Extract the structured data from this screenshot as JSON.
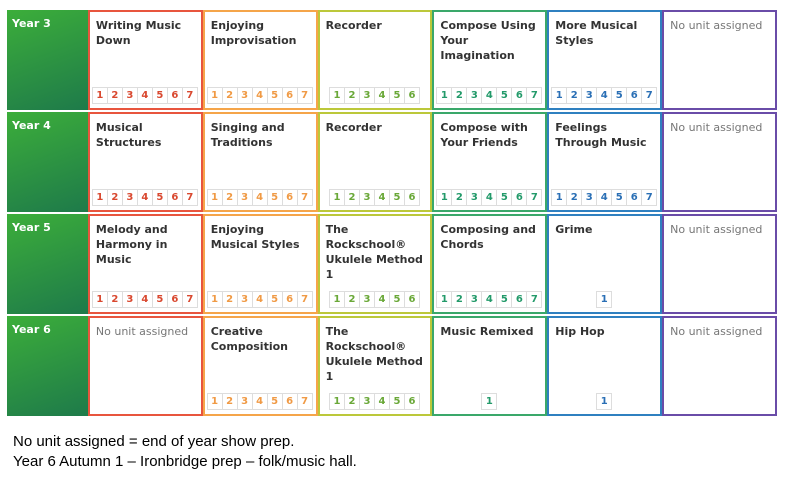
{
  "rows": [
    {
      "year": "Year 3",
      "cells": [
        {
          "title": "Writing Music Down",
          "lessons": [
            1,
            2,
            3,
            4,
            5,
            6,
            7
          ]
        },
        {
          "title": "Enjoying Improvisation",
          "lessons": [
            1,
            2,
            3,
            4,
            5,
            6,
            7
          ]
        },
        {
          "title": "Recorder",
          "lessons": [
            1,
            2,
            3,
            4,
            5,
            6
          ]
        },
        {
          "title": "Compose Using Your Imagination",
          "lessons": [
            1,
            2,
            3,
            4,
            5,
            6,
            7
          ]
        },
        {
          "title": "More Musical Styles",
          "lessons": [
            1,
            2,
            3,
            4,
            5,
            6,
            7
          ]
        },
        {
          "title": "No unit assigned",
          "lessons": []
        }
      ]
    },
    {
      "year": "Year 4",
      "cells": [
        {
          "title": "Musical Structures",
          "lessons": [
            1,
            2,
            3,
            4,
            5,
            6,
            7
          ]
        },
        {
          "title": "Singing and Traditions",
          "lessons": [
            1,
            2,
            3,
            4,
            5,
            6,
            7
          ]
        },
        {
          "title": "Recorder",
          "lessons": [
            1,
            2,
            3,
            4,
            5,
            6
          ]
        },
        {
          "title": "Compose with Your Friends",
          "lessons": [
            1,
            2,
            3,
            4,
            5,
            6,
            7
          ]
        },
        {
          "title": "Feelings Through Music",
          "lessons": [
            1,
            2,
            3,
            4,
            5,
            6,
            7
          ]
        },
        {
          "title": "No unit assigned",
          "lessons": []
        }
      ]
    },
    {
      "year": "Year 5",
      "cells": [
        {
          "title": "Melody and Harmony in Music",
          "lessons": [
            1,
            2,
            3,
            4,
            5,
            6,
            7
          ]
        },
        {
          "title": "Enjoying Musical Styles",
          "lessons": [
            1,
            2,
            3,
            4,
            5,
            6,
            7
          ]
        },
        {
          "title": "The Rockschool® Ukulele Method 1",
          "lessons": [
            1,
            2,
            3,
            4,
            5,
            6
          ]
        },
        {
          "title": "Composing and Chords",
          "lessons": [
            1,
            2,
            3,
            4,
            5,
            6,
            7
          ]
        },
        {
          "title": "Grime",
          "lessons": [
            1
          ]
        },
        {
          "title": "No unit assigned",
          "lessons": []
        }
      ]
    },
    {
      "year": "Year 6",
      "cells": [
        {
          "title": "No unit assigned",
          "lessons": []
        },
        {
          "title": "Creative Composition",
          "lessons": [
            1,
            2,
            3,
            4,
            5,
            6,
            7
          ]
        },
        {
          "title": "The Rockschool® Ukulele Method 1",
          "lessons": [
            1,
            2,
            3,
            4,
            5,
            6
          ]
        },
        {
          "title": "Music Remixed",
          "lessons": [
            1
          ]
        },
        {
          "title": "Hip Hop",
          "lessons": [
            1
          ]
        },
        {
          "title": "No unit assigned",
          "lessons": []
        }
      ]
    }
  ],
  "notes": [
    "No unit assigned = end of year show prep.",
    "Year 6 Autumn 1 – Ironbridge prep – folk/music hall."
  ]
}
